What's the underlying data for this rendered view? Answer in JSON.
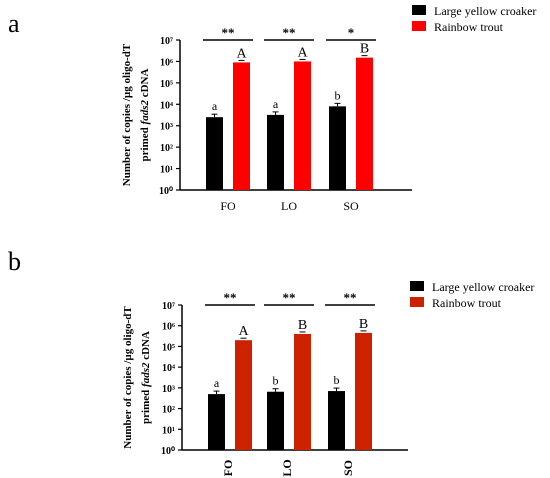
{
  "chart_data": [
    {
      "panel_label": "a",
      "type": "bar",
      "ylabel_lines": [
        "Number of copies /µg oligo-dT",
        "primed ",
        "fads2",
        " cDNA"
      ],
      "y_scale": "log10",
      "ylim": [
        1,
        10000000
      ],
      "y_tick_labels": [
        "10⁰",
        "10¹",
        "10²",
        "10³",
        "10⁴",
        "10⁵",
        "10⁶",
        "10⁷"
      ],
      "categories": [
        "FO",
        "LO",
        "SO"
      ],
      "series": [
        {
          "name": "Large yellow croaker",
          "color": "#000000",
          "values": [
            2500,
            3200,
            8000
          ],
          "letters": [
            "a",
            "a",
            "b"
          ]
        },
        {
          "name": "Rainbow trout",
          "color": "#ff0000",
          "values": [
            900000,
            1000000,
            1500000
          ],
          "letters": [
            "A",
            "A",
            "B"
          ]
        }
      ],
      "significance": [
        "**",
        "**",
        "*"
      ],
      "legend_position": "top-right"
    },
    {
      "panel_label": "b",
      "type": "bar",
      "ylabel_lines": [
        "Number of copies /µg oligo-dT",
        "primed ",
        "fads2",
        " cDNA"
      ],
      "y_scale": "log10",
      "ylim": [
        1,
        10000000
      ],
      "y_tick_labels": [
        "10⁰",
        "10¹",
        "10²",
        "10³",
        "10⁴",
        "10⁵",
        "10⁶",
        "10⁷"
      ],
      "categories": [
        "FO",
        "LO",
        "SO"
      ],
      "series": [
        {
          "name": "Large yellow croaker",
          "color": "#000000",
          "values": [
            500,
            650,
            700
          ],
          "letters": [
            "a",
            "b",
            "b"
          ]
        },
        {
          "name": "Rainbow trout",
          "color": "#cc2200",
          "values": [
            200000,
            400000,
            450000
          ],
          "letters": [
            "A",
            "B",
            "B"
          ]
        }
      ],
      "significance": [
        "**",
        "**",
        "**"
      ],
      "legend_position": "top-right"
    }
  ]
}
